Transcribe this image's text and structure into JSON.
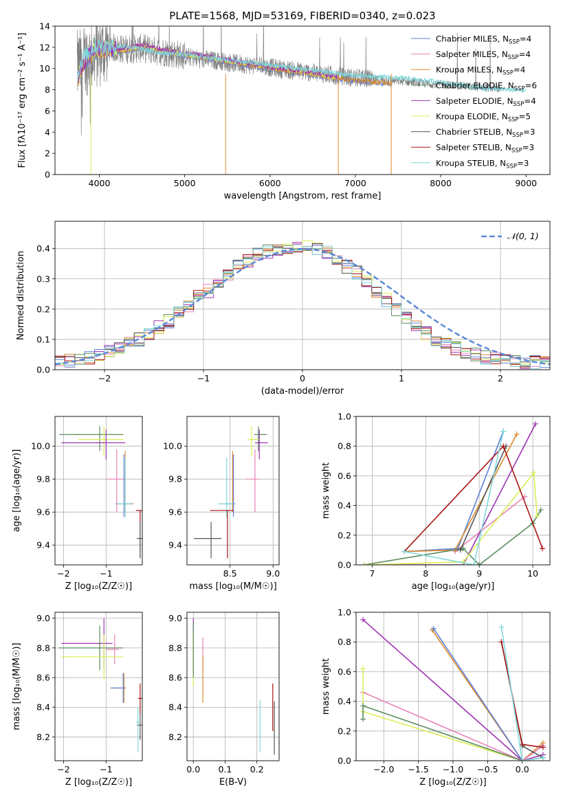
{
  "figure_title": "PLATE=1568, MJD=53169, FIBERID=0340, z=0.023",
  "colors": {
    "Chabrier MILES": "#5f7fd6",
    "Salpeter MILES": "#e882b6",
    "Kroupa MILES": "#d98a2c",
    "Chabrier ELODIE": "#5a8a5c",
    "Salpeter ELODIE": "#9d32b2",
    "Kroupa ELODIE": "#d9ef55",
    "Chabrier STELIB": "#555555",
    "Salpeter STELIB": "#a81414",
    "Kroupa STELIB": "#7fd8dc",
    "spectrum": "#808080",
    "normal": "#5b8ad6",
    "grid": "#b0b0b0"
  },
  "chart_data": [
    {
      "id": "spectrum",
      "type": "line",
      "xlabel": "wavelength [Angstrom, rest frame]",
      "ylabel": "Flux [fλ10⁻¹⁷ erg cm⁻² s⁻¹ A⁻¹]",
      "xlim": [
        3480,
        9280
      ],
      "ylim": [
        0,
        14
      ],
      "xticks": [
        4000,
        5000,
        6000,
        7000,
        8000,
        9000
      ],
      "yticks": [
        0,
        2,
        4,
        6,
        8,
        10,
        12,
        14
      ],
      "grid": false,
      "legend_position": "top-right",
      "data_continuum": {
        "x": [
          3750,
          3900,
          4100,
          4300,
          4500,
          4800,
          5100,
          5500,
          6000,
          6500,
          7000,
          7400,
          7800,
          8200,
          8700
        ],
        "y": [
          10.2,
          11.2,
          12.0,
          11.8,
          11.9,
          11.5,
          11.0,
          10.6,
          10.1,
          9.6,
          9.1,
          8.9,
          8.6,
          8.4,
          8.1
        ]
      },
      "model_continuum": {
        "x": [
          3740,
          3800,
          3950,
          4100,
          4300,
          4500,
          4700,
          4900,
          5200,
          5500,
          5800,
          6100,
          6400,
          6700,
          7000,
          7300,
          7430
        ],
        "y": [
          8.8,
          10.2,
          11.6,
          11.7,
          11.6,
          12.0,
          11.6,
          11.3,
          11.0,
          10.6,
          10.2,
          9.8,
          9.5,
          9.1,
          8.8,
          8.6,
          8.5
        ]
      },
      "stelib_continuum": {
        "x": [
          3740,
          3800,
          3950,
          4100,
          4300,
          4500,
          4700,
          5000,
          5500,
          6000,
          6500,
          7000,
          7500,
          8000,
          8500,
          9000
        ],
        "y": [
          9.0,
          10.6,
          11.8,
          11.7,
          11.8,
          11.5,
          11.2,
          11.0,
          10.5,
          10.0,
          9.5,
          9.0,
          8.8,
          8.4,
          7.8,
          7.6
        ]
      },
      "legend": [
        {
          "label": "Chabrier MILES, N",
          "sub": "SSP",
          "eq": "=4",
          "key": "Chabrier MILES"
        },
        {
          "label": "Salpeter MILES, N",
          "sub": "SSP",
          "eq": "=4",
          "key": "Salpeter MILES"
        },
        {
          "label": "Kroupa MILES, N",
          "sub": "SSP",
          "eq": "=4",
          "key": "Kroupa MILES"
        },
        {
          "label": "Chabrier ELODIE, N",
          "sub": "SSP",
          "eq": "=6",
          "key": "Chabrier ELODIE"
        },
        {
          "label": "Salpeter ELODIE, N",
          "sub": "SSP",
          "eq": "=4",
          "key": "Salpeter ELODIE"
        },
        {
          "label": "Kroupa ELODIE, N",
          "sub": "SSP",
          "eq": "=5",
          "key": "Kroupa ELODIE"
        },
        {
          "label": "Chabrier STELIB, N",
          "sub": "SSP",
          "eq": "=3",
          "key": "Chabrier STELIB"
        },
        {
          "label": "Salpeter STELIB, N",
          "sub": "SSP",
          "eq": "=3",
          "key": "Salpeter STELIB"
        },
        {
          "label": "Kroupa STELIB, N",
          "sub": "SSP",
          "eq": "=3",
          "key": "Kroupa STELIB"
        }
      ]
    },
    {
      "id": "residuals",
      "type": "line",
      "xlabel": "(data-model)/error",
      "ylabel": "Normed distribution",
      "xlim": [
        -2.5,
        2.5
      ],
      "ylim": [
        0,
        0.49
      ],
      "xticks": [
        -2,
        -1,
        0,
        1,
        2
      ],
      "yticks": [
        0.0,
        0.1,
        0.2,
        0.3,
        0.4
      ],
      "grid": true,
      "legend_position": "top-right",
      "legend_label": "𝒩(0, 1)",
      "bin_width": 0.1,
      "hist_base": [
        0.025,
        0.03,
        0.035,
        0.04,
        0.05,
        0.06,
        0.07,
        0.085,
        0.1,
        0.12,
        0.14,
        0.16,
        0.19,
        0.21,
        0.24,
        0.26,
        0.29,
        0.31,
        0.34,
        0.36,
        0.38,
        0.39,
        0.4,
        0.4,
        0.41,
        0.41,
        0.4,
        0.39,
        0.37,
        0.34,
        0.32,
        0.29,
        0.26,
        0.23,
        0.2,
        0.17,
        0.15,
        0.12,
        0.1,
        0.085,
        0.07,
        0.06,
        0.05,
        0.04,
        0.035,
        0.03,
        0.028,
        0.025,
        0.025,
        0.025
      ]
    },
    {
      "id": "age_vs_Z",
      "type": "scatter",
      "xlabel": "Z [log₁₀(Z/Z☉)]",
      "ylabel": "age  [log₁₀(age/yr)]",
      "xlim": [
        -2.2,
        -0.15
      ],
      "ylim": [
        9.28,
        10.18
      ],
      "xticks": [
        -2,
        -1
      ],
      "yticks": [
        9.4,
        9.6,
        9.8,
        10.0
      ],
      "grid": true,
      "points": [
        {
          "key": "Chabrier ELODIE",
          "x": -1.15,
          "y": 10.07,
          "xerr": [
            0.95,
            0.55
          ],
          "yerr": [
            0.1,
            0.05
          ]
        },
        {
          "key": "Kroupa ELODIE",
          "x": -1.05,
          "y": 10.04,
          "xerr": [
            0.6,
            0.45
          ],
          "yerr": [
            0.1,
            0.08
          ]
        },
        {
          "key": "Salpeter ELODIE",
          "x": -1.0,
          "y": 10.02,
          "xerr": [
            1.05,
            0.45
          ],
          "yerr": [
            0.1,
            0.08
          ]
        },
        {
          "key": "Salpeter MILES",
          "x": -0.75,
          "y": 9.8,
          "xerr": [
            0.25,
            0.2
          ],
          "yerr": [
            0.2,
            0.18
          ]
        },
        {
          "key": "Kroupa MILES",
          "x": -0.55,
          "y": 9.65,
          "xerr": [
            0.2,
            0.2
          ],
          "yerr": [
            0.05,
            0.32
          ]
        },
        {
          "key": "Chabrier MILES",
          "x": -0.58,
          "y": 9.65,
          "xerr": [
            0.2,
            0.2
          ],
          "yerr": [
            0.08,
            0.3
          ]
        },
        {
          "key": "Kroupa STELIB",
          "x": -0.55,
          "y": 9.65,
          "xerr": [
            0.2,
            0.15
          ],
          "yerr": [
            0.08,
            0.28
          ]
        },
        {
          "key": "Salpeter STELIB",
          "x": -0.2,
          "y": 9.61,
          "xerr": [
            0.1,
            0.05
          ],
          "yerr": [
            0.29,
            0.0
          ]
        },
        {
          "key": "Chabrier STELIB",
          "x": -0.2,
          "y": 9.44,
          "xerr": [
            0.08,
            0.08
          ],
          "yerr": [
            0.12,
            0.1
          ]
        }
      ]
    },
    {
      "id": "age_vs_mass",
      "type": "scatter",
      "xlabel": "mass [log₁₀(M/M☉)]",
      "ylabel": "",
      "xlim": [
        8.0,
        9.07
      ],
      "ylim": [
        9.28,
        10.18
      ],
      "xticks": [
        8.5,
        9.0
      ],
      "yticks": [
        9.4,
        9.6,
        9.8,
        10.0
      ],
      "grid": true,
      "points": [
        {
          "key": "Chabrier ELODIE",
          "x": 8.83,
          "y": 10.07,
          "xerr": [
            0.05,
            0.1
          ],
          "yerr": [
            0.1,
            0.05
          ]
        },
        {
          "key": "Kroupa ELODIE",
          "x": 8.75,
          "y": 10.04,
          "xerr": [
            0.05,
            0.1
          ],
          "yerr": [
            0.1,
            0.08
          ]
        },
        {
          "key": "Salpeter ELODIE",
          "x": 8.84,
          "y": 10.02,
          "xerr": [
            0.05,
            0.1
          ],
          "yerr": [
            0.1,
            0.08
          ]
        },
        {
          "key": "Salpeter MILES",
          "x": 8.79,
          "y": 9.8,
          "xerr": [
            0.1,
            0.05
          ],
          "yerr": [
            0.2,
            0.18
          ]
        },
        {
          "key": "Kroupa MILES",
          "x": 8.53,
          "y": 9.65,
          "xerr": [
            0.15,
            0.02
          ],
          "yerr": [
            0.05,
            0.32
          ]
        },
        {
          "key": "Chabrier MILES",
          "x": 8.54,
          "y": 9.65,
          "xerr": [
            0.1,
            0.02
          ],
          "yerr": [
            0.08,
            0.3
          ]
        },
        {
          "key": "Kroupa STELIB",
          "x": 8.46,
          "y": 9.65,
          "xerr": [
            0.1,
            0.08
          ],
          "yerr": [
            0.08,
            0.28
          ]
        },
        {
          "key": "Salpeter STELIB",
          "x": 8.47,
          "y": 9.61,
          "xerr": [
            0.2,
            0.07
          ],
          "yerr": [
            0.29,
            0.0
          ]
        },
        {
          "key": "Chabrier STELIB",
          "x": 8.28,
          "y": 9.44,
          "xerr": [
            0.2,
            0.12
          ],
          "yerr": [
            0.12,
            0.1
          ]
        }
      ]
    },
    {
      "id": "mass_weight_vs_age",
      "type": "line",
      "xlabel": "age  [log₁₀(age/yr)]",
      "ylabel": "mass weight",
      "xlim": [
        6.7,
        10.32
      ],
      "ylim": [
        0,
        1.0
      ],
      "xticks": [
        7,
        8,
        9,
        10
      ],
      "yticks": [
        0.0,
        0.2,
        0.4,
        0.6,
        0.8,
        1.0
      ],
      "grid": true,
      "series": [
        {
          "key": "Chabrier MILES",
          "x": [
            7.6,
            8.6,
            9.45
          ],
          "y": [
            0.09,
            0.11,
            0.9
          ]
        },
        {
          "key": "Salpeter MILES",
          "x": [
            8.55,
            9.85
          ],
          "y": [
            0.09,
            0.46
          ]
        },
        {
          "key": "Kroupa MILES",
          "x": [
            7.6,
            8.55,
            9.7
          ],
          "y": [
            0.09,
            0.1,
            0.88
          ]
        },
        {
          "key": "Chabrier ELODIE",
          "x": [
            6.85,
            8.7,
            9.0,
            10.0,
            10.15
          ],
          "y": [
            0.0,
            0.11,
            0.0,
            0.28,
            0.37
          ]
        },
        {
          "key": "Salpeter ELODIE",
          "x": [
            6.85,
            8.7,
            10.05
          ],
          "y": [
            0.0,
            0.0,
            0.95
          ]
        },
        {
          "key": "Kroupa ELODIE",
          "x": [
            6.85,
            8.7,
            10.02,
            10.08
          ],
          "y": [
            0.0,
            0.02,
            0.62,
            0.33
          ]
        },
        {
          "key": "Chabrier STELIB",
          "x": [
            8.65,
            9.5
          ],
          "y": [
            0.1,
            0.8
          ]
        },
        {
          "key": "Salpeter STELIB",
          "x": [
            7.6,
            9.45,
            10.18
          ],
          "y": [
            0.09,
            0.8,
            0.11
          ]
        },
        {
          "key": "Kroupa STELIB",
          "x": [
            7.6,
            8.9,
            9.45
          ],
          "y": [
            0.09,
            0.0,
            0.9
          ]
        }
      ]
    },
    {
      "id": "mass_vs_Z",
      "type": "scatter",
      "xlabel": "Z [log₁₀(Z/Z☉)]",
      "ylabel": "mass [log₁₀(M/M☉)]",
      "xlim": [
        -2.2,
        -0.15
      ],
      "ylim": [
        8.04,
        9.04
      ],
      "xticks": [
        -2,
        -1
      ],
      "yticks": [
        8.2,
        8.4,
        8.6,
        8.8,
        9.0
      ],
      "grid": true,
      "points": [
        {
          "key": "Salpeter ELODIE",
          "x": -1.05,
          "y": 8.83,
          "xerr": [
            1.0,
            0.2
          ],
          "yerr": [
            0.17,
            0.17
          ]
        },
        {
          "key": "Chabrier ELODIE",
          "x": -1.15,
          "y": 8.8,
          "xerr": [
            0.95,
            0.55
          ],
          "yerr": [
            0.15,
            0.15
          ]
        },
        {
          "key": "Salpeter MILES",
          "x": -0.8,
          "y": 8.79,
          "xerr": [
            0.2,
            0.1
          ],
          "yerr": [
            0.1,
            0.1
          ]
        },
        {
          "key": "Kroupa ELODIE",
          "x": -1.05,
          "y": 8.74,
          "xerr": [
            1.0,
            0.45
          ],
          "yerr": [
            0.15,
            0.15
          ]
        },
        {
          "key": "Kroupa MILES",
          "x": -0.58,
          "y": 8.53,
          "xerr": [
            0.3,
            0.05
          ],
          "yerr": [
            0.1,
            0.1
          ]
        },
        {
          "key": "Chabrier MILES",
          "x": -0.6,
          "y": 8.53,
          "xerr": [
            0.3,
            0.05
          ],
          "yerr": [
            0.1,
            0.1
          ]
        },
        {
          "key": "Chabrier STELIB",
          "x": -0.2,
          "y": 8.28,
          "xerr": [
            0.08,
            0.08
          ],
          "yerr": [
            0.1,
            0.1
          ]
        },
        {
          "key": "Salpeter STELIB",
          "x": -0.2,
          "y": 8.46,
          "xerr": [
            0.05,
            0.05
          ],
          "yerr": [
            0.1,
            0.1
          ]
        },
        {
          "key": "Kroupa STELIB",
          "x": -0.25,
          "y": 8.3,
          "xerr": [
            0.05,
            0.05
          ],
          "yerr": [
            0.2,
            0.1
          ]
        }
      ]
    },
    {
      "id": "mass_vs_EBV",
      "type": "scatter",
      "xlabel": "E(B-V)",
      "ylabel": "",
      "xlim": [
        -0.02,
        0.27
      ],
      "ylim": [
        8.04,
        9.04
      ],
      "xticks": [
        0.0,
        0.1,
        0.2
      ],
      "yticks": [
        8.2,
        8.4,
        8.6,
        8.8,
        9.0
      ],
      "grid": true,
      "points": [
        {
          "key": "Salpeter ELODIE",
          "x": 0.0,
          "y": 8.83,
          "yerr": [
            0.2,
            0.17
          ]
        },
        {
          "key": "Kroupa ELODIE",
          "x": 0.0,
          "y": 8.74,
          "yerr": [
            0.2,
            0.17
          ]
        },
        {
          "key": "Chabrier ELODIE",
          "x": 0.0,
          "y": 8.8,
          "yerr": [
            0.2,
            0.17
          ]
        },
        {
          "key": "Salpeter MILES",
          "x": 0.03,
          "y": 8.79,
          "yerr": [
            0.15,
            0.08
          ]
        },
        {
          "key": "Kroupa MILES",
          "x": 0.03,
          "y": 8.53,
          "yerr": [
            0.1,
            0.22
          ]
        },
        {
          "key": "Kroupa STELIB",
          "x": 0.21,
          "y": 8.3,
          "yerr": [
            0.2,
            0.15
          ]
        },
        {
          "key": "Salpeter STELIB",
          "x": 0.25,
          "y": 8.46,
          "yerr": [
            0.22,
            0.1
          ]
        },
        {
          "key": "Chabrier STELIB",
          "x": 0.255,
          "y": 8.28,
          "yerr": [
            0.2,
            0.16
          ]
        }
      ]
    },
    {
      "id": "mass_weight_vs_Z",
      "type": "line",
      "xlabel": "Z [log₁₀(Z/Z☉)]",
      "ylabel": "mass weight",
      "xlim": [
        -2.4,
        0.4
      ],
      "ylim": [
        0,
        1.0
      ],
      "xticks": [
        -2.0,
        -1.5,
        -1.0,
        -0.5,
        0.0
      ],
      "yticks": [
        0.0,
        0.2,
        0.4,
        0.6,
        0.8,
        1.0
      ],
      "grid": true,
      "series": [
        {
          "key": "Salpeter ELODIE",
          "x": [
            -2.3,
            0.0,
            0.3
          ],
          "y": [
            0.95,
            0.0,
            0.04
          ]
        },
        {
          "key": "Kroupa MILES",
          "x": [
            -1.3,
            0.0,
            0.3
          ],
          "y": [
            0.88,
            0.0,
            0.12
          ]
        },
        {
          "key": "Chabrier MILES",
          "x": [
            -1.28,
            0.0,
            0.3
          ],
          "y": [
            0.89,
            0.0,
            0.1
          ]
        },
        {
          "key": "Salpeter MILES",
          "x": [
            -2.3,
            0.0,
            0.3
          ],
          "y": [
            0.46,
            0.0,
            0.1
          ]
        },
        {
          "key": "Kroupa ELODIE",
          "x": [
            -2.3,
            -2.3,
            0.0,
            0.3
          ],
          "y": [
            0.62,
            0.33,
            0.0,
            0.02
          ]
        },
        {
          "key": "Chabrier ELODIE",
          "x": [
            -2.3,
            -2.3,
            0.0,
            0.3
          ],
          "y": [
            0.28,
            0.37,
            0.0,
            0.02
          ]
        },
        {
          "key": "Chabrier STELIB",
          "x": [
            -0.3,
            0.0,
            0.3
          ],
          "y": [
            0.8,
            0.1,
            0.02
          ]
        },
        {
          "key": "Salpeter STELIB",
          "x": [
            -0.3,
            0.0,
            0.3
          ],
          "y": [
            0.8,
            0.11,
            0.09
          ]
        },
        {
          "key": "Kroupa STELIB",
          "x": [
            -0.3,
            0.0,
            0.3
          ],
          "y": [
            0.9,
            0.0,
            0.02
          ]
        }
      ]
    }
  ]
}
